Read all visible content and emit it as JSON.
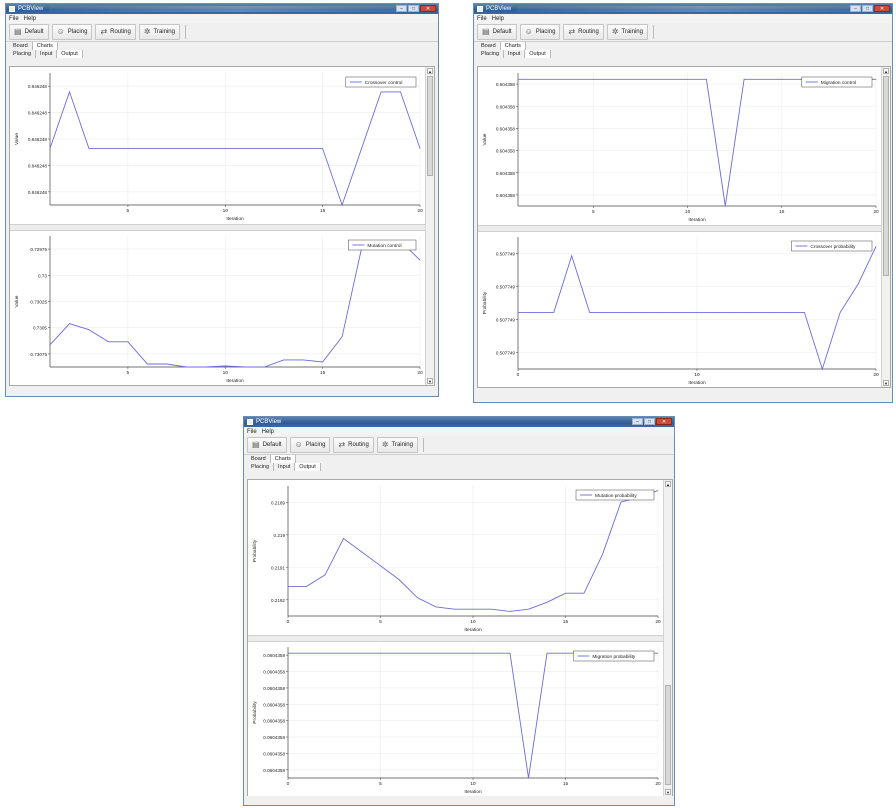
{
  "windows": [
    {
      "title": "PCBView",
      "menu": [
        "File",
        "Help"
      ],
      "toolbar": [
        {
          "label": "Default",
          "icon": "document-icon"
        },
        {
          "label": "Placing",
          "icon": "people-icon"
        },
        {
          "label": "Routing",
          "icon": "routing-icon"
        },
        {
          "label": "Training",
          "icon": "training-icon"
        }
      ],
      "tabs_top": [
        "Board",
        "Charts"
      ],
      "tabs_sub": [
        "Placing",
        "Input",
        "Output"
      ],
      "charts": [
        {
          "ylabel": "Value",
          "xlabel": "Iteration",
          "legend": "Crossover control",
          "yticks": [
            "0.846248",
            "0.846248",
            "0.846248",
            "0.846248",
            "0.846248"
          ],
          "xticks": [
            "5",
            "10",
            "15",
            "20"
          ]
        },
        {
          "ylabel": "Value",
          "xlabel": "Iteration",
          "legend": "Mutation control",
          "yticks": [
            "0.73075",
            "0.7305",
            "0.73025",
            "0.73",
            "0.72975"
          ],
          "xticks": [
            "5",
            "10",
            "15",
            "20"
          ]
        }
      ]
    },
    {
      "title": "PCBView",
      "menu": [
        "File",
        "Help"
      ],
      "toolbar": [
        {
          "label": "Default",
          "icon": "document-icon"
        },
        {
          "label": "Placing",
          "icon": "people-icon"
        },
        {
          "label": "Routing",
          "icon": "routing-icon"
        },
        {
          "label": "Training",
          "icon": "training-icon"
        }
      ],
      "tabs_top": [
        "Board",
        "Charts"
      ],
      "tabs_sub": [
        "Placing",
        "Input",
        "Output"
      ],
      "charts": [
        {
          "ylabel": "Value",
          "xlabel": "Iteration",
          "legend": "Migration control",
          "yticks": [
            "0.604358",
            "0.604358",
            "0.604358",
            "0.604358",
            "0.604358",
            "0.604358"
          ],
          "xticks": [
            "5",
            "10",
            "15",
            "20"
          ]
        },
        {
          "ylabel": "Probability",
          "xlabel": "Iteration",
          "legend": "Crossover probability",
          "yticks": [
            "0.507749",
            "0.507749",
            "0.507749",
            "0.507749"
          ],
          "xticks": [
            "0",
            "10",
            "20"
          ]
        }
      ]
    },
    {
      "title": "PCBView",
      "menu": [
        "File",
        "Help"
      ],
      "toolbar": [
        {
          "label": "Default",
          "icon": "document-icon"
        },
        {
          "label": "Placing",
          "icon": "people-icon"
        },
        {
          "label": "Routing",
          "icon": "routing-icon"
        },
        {
          "label": "Training",
          "icon": "training-icon"
        }
      ],
      "tabs_top": [
        "Board",
        "Charts"
      ],
      "tabs_sub": [
        "Placing",
        "Input",
        "Output"
      ],
      "charts": [
        {
          "ylabel": "Probability",
          "xlabel": "Iteration",
          "legend": "Mutation probability",
          "yticks": [
            "0.2192",
            "0.2191",
            "0.219",
            "0.2189"
          ],
          "xticks": [
            "0",
            "5",
            "10",
            "15",
            "20"
          ]
        },
        {
          "ylabel": "Probability",
          "xlabel": "Iteration",
          "legend": "Migration probability",
          "yticks": [
            "0.0604358",
            "0.0604358",
            "0.0604358",
            "0.0604358",
            "0.0604358",
            "0.0604358",
            "0.0604358",
            "0.0604358"
          ],
          "xticks": [
            "0",
            "5",
            "10",
            "15",
            "20"
          ]
        }
      ]
    }
  ],
  "colors": {
    "series": "#6b6bdf",
    "titlebar": "#2e5c95",
    "grid": "#ececec"
  },
  "chart_data": [
    {
      "type": "line",
      "series": [
        {
          "name": "Crossover control",
          "x": [
            1,
            2,
            3,
            4,
            5,
            6,
            7,
            8,
            9,
            10,
            11,
            12,
            13,
            14,
            15,
            16,
            17,
            18,
            19,
            20
          ],
          "y": [
            3,
            6,
            3,
            3,
            3,
            3,
            3,
            3,
            3,
            3,
            3,
            3,
            3,
            3,
            3,
            0,
            3,
            6,
            6,
            3
          ]
        }
      ],
      "ylim": [
        0,
        7
      ],
      "xlim": [
        1,
        20
      ]
    },
    {
      "type": "line",
      "series": [
        {
          "name": "Mutation control",
          "x": [
            1,
            2,
            3,
            4,
            5,
            6,
            7,
            8,
            9,
            10,
            11,
            12,
            13,
            14,
            15,
            16,
            17,
            18,
            19,
            20
          ],
          "y": [
            0.72977,
            0.72998,
            0.72992,
            0.7298,
            0.7298,
            0.72958,
            0.72958,
            0.72955,
            0.72955,
            0.72956,
            0.72955,
            0.72955,
            0.72962,
            0.72962,
            0.7296,
            0.72985,
            0.73073,
            0.7308,
            0.7308,
            0.73061
          ]
        }
      ],
      "ylim": [
        0.72955,
        0.73085
      ],
      "xlim": [
        1,
        20
      ]
    },
    {
      "type": "line",
      "series": [
        {
          "name": "Migration control",
          "x": [
            1,
            2,
            3,
            4,
            5,
            6,
            7,
            8,
            9,
            10,
            11,
            12,
            13,
            14,
            15,
            16,
            17,
            18,
            19,
            20
          ],
          "y": [
            1,
            1,
            1,
            1,
            1,
            1,
            1,
            1,
            1,
            1,
            1,
            0,
            1,
            1,
            1,
            1,
            1,
            1,
            1,
            1
          ]
        }
      ],
      "ylim": [
        0,
        1.05
      ],
      "xlim": [
        1,
        20
      ]
    },
    {
      "type": "line",
      "series": [
        {
          "name": "Crossover probability",
          "x": [
            0,
            1,
            2,
            3,
            4,
            5,
            6,
            7,
            8,
            9,
            10,
            11,
            12,
            13,
            14,
            15,
            16,
            17,
            18,
            19,
            20
          ],
          "y": [
            3,
            3,
            3,
            6,
            3,
            3,
            3,
            3,
            3,
            3,
            3,
            3,
            3,
            3,
            3,
            3,
            3,
            0,
            3,
            4.5,
            6.5
          ]
        }
      ],
      "ylim": [
        0,
        7
      ],
      "xlim": [
        0,
        20
      ]
    },
    {
      "type": "line",
      "series": [
        {
          "name": "Mutation probability",
          "x": [
            0,
            1,
            2,
            3,
            4,
            5,
            6,
            7,
            8,
            9,
            10,
            11,
            12,
            13,
            14,
            15,
            16,
            17,
            18,
            19,
            20
          ],
          "y": [
            0.21883,
            0.21883,
            0.21888,
            0.21904,
            0.21898,
            0.21892,
            0.21886,
            0.21878,
            0.21874,
            0.21873,
            0.21873,
            0.21873,
            0.21872,
            0.21873,
            0.21876,
            0.2188,
            0.2188,
            0.21897,
            0.2192,
            0.21922,
            0.21925
          ]
        }
      ],
      "ylim": [
        0.2187,
        0.21927
      ],
      "xlim": [
        0,
        20
      ]
    },
    {
      "type": "line",
      "series": [
        {
          "name": "Migration probability",
          "x": [
            0,
            1,
            2,
            3,
            4,
            5,
            6,
            7,
            8,
            9,
            10,
            11,
            12,
            13,
            14,
            15,
            16,
            17,
            18,
            19,
            20
          ],
          "y": [
            1,
            1,
            1,
            1,
            1,
            1,
            1,
            1,
            1,
            1,
            1,
            1,
            1,
            0,
            1,
            1,
            1,
            1,
            1,
            1,
            1
          ]
        }
      ],
      "ylim": [
        0,
        1.05
      ],
      "xlim": [
        0,
        20
      ]
    }
  ]
}
